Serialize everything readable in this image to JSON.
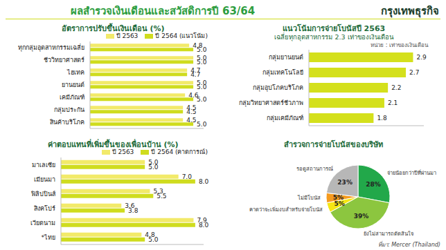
{
  "title": "ผลสำรวจเงินเดือนและสวัสดิการปี 63/64",
  "publisher": "กรุงเทพธุรกิจ",
  "source": "ที่มา: Mercer (Thailand)",
  "chart_data": [
    {
      "type": "bar",
      "orientation": "horizontal",
      "title": "อัตราการปรับขึ้นเงินเดือน (%)",
      "categories": [
        "ทุกกลุ่มอุตสาหกรรมเฉลี่ย",
        "ชีววิทยาศาสตร์",
        "ไฮเทค",
        "ยานยนต์",
        "เคมีภัณฑ์",
        "กลุ่มประกัน",
        "สินค้าบริโภค"
      ],
      "series": [
        {
          "name": "ปี 2563",
          "color": "#f2ea6a",
          "values": [
            4.8,
            5.0,
            4.7,
            5.0,
            4.6,
            4.5,
            4.5
          ],
          "value_labels": [
            "4.8",
            "5.0",
            "4.7",
            "5.0",
            "4.6",
            "4.5",
            "4.5"
          ]
        },
        {
          "name": "ปี 2564 (แนวโน้ม)",
          "color": "#cfdc1e",
          "values": [
            5.0,
            5.0,
            4.7,
            5.0,
            5.0,
            4.5,
            5.0
          ],
          "value_labels": [
            "5.0",
            "5.0",
            "4.7",
            "5.0",
            "5.0",
            "4.5",
            "5.0"
          ]
        }
      ],
      "xlim": [
        0,
        5.5
      ],
      "data_labels": true,
      "tick_labels": "y",
      "legend": "top"
    },
    {
      "type": "bar",
      "orientation": "horizontal",
      "title": "แนวโน้มการจ่ายโบนัสปี 2563",
      "subtitle": "เฉลี่ยทุกอุตสาหกรรม 2.3 เท่าของเงินเดือน",
      "xlabel": "หน่วย : เท่าของเงินเดือน",
      "categories": [
        "กลุ่มยานยนต์",
        "กลุ่มเทคโนโลยี",
        "กลุ่มอุปโภคบริโภค",
        "กลุ่มวิทยาศาสตร์ชีวภาพ",
        "กลุ่มเคมีภัณฑ์"
      ],
      "values": [
        2.9,
        2.7,
        2.2,
        2.1,
        1.8
      ],
      "color": "#d4e01c",
      "xlim": [
        0,
        3.2
      ],
      "data_labels": true,
      "tick_labels": "y"
    },
    {
      "type": "bar",
      "orientation": "horizontal",
      "title": "ค่าตอบแทนที่เพิ่มขึ้นของเพื่อนบ้าน (%)",
      "categories": [
        "มาเลเซีย",
        "เมียนมา",
        "ฟิลิปปินส์",
        "สิงคโปร์",
        "เวียดนาม",
        "*ไทย"
      ],
      "series": [
        {
          "name": "ปี 2563",
          "color": "#f2ea6a",
          "values": [
            5.0,
            7.0,
            5.3,
            3.6,
            7.9,
            4.8
          ],
          "value_labels": [
            "5.0",
            "7.0",
            "5.3",
            "3.6",
            "7.9",
            "4.8"
          ]
        },
        {
          "name": "ปี 2564 (คาดการณ์)",
          "color": "#cfdc1e",
          "values": [
            5.0,
            8.0,
            5.5,
            3.8,
            8.0,
            5.0
          ],
          "value_labels": [
            "5.0",
            "8.0",
            "5.5",
            "3.8",
            "8.0",
            "5.0"
          ]
        }
      ],
      "xlim": [
        0,
        8.5
      ],
      "data_labels": true,
      "tick_labels": "y",
      "legend": "top"
    },
    {
      "type": "pie",
      "title": "สำรวจการจ่ายโบนัสของบริษัท",
      "categories": [
        "จ่ายน้อยกว่าปีที่ผ่านมา",
        "ยังไม่สามารถตัดสินใจ",
        "คาดว่าจะเพิ่มงบสำหรับจ่ายโบนัส",
        "ไม่มีโบนัส",
        "รอดูสถานการณ์"
      ],
      "values": [
        28,
        39,
        5,
        5,
        23
      ],
      "value_labels": [
        "28%",
        "39%",
        "5%",
        "5%",
        "23%"
      ],
      "colors": [
        "#22a84a",
        "#8cc63f",
        "#f5e614",
        "#f59b1f",
        "#b7b7b7"
      ],
      "data_labels": true
    }
  ]
}
